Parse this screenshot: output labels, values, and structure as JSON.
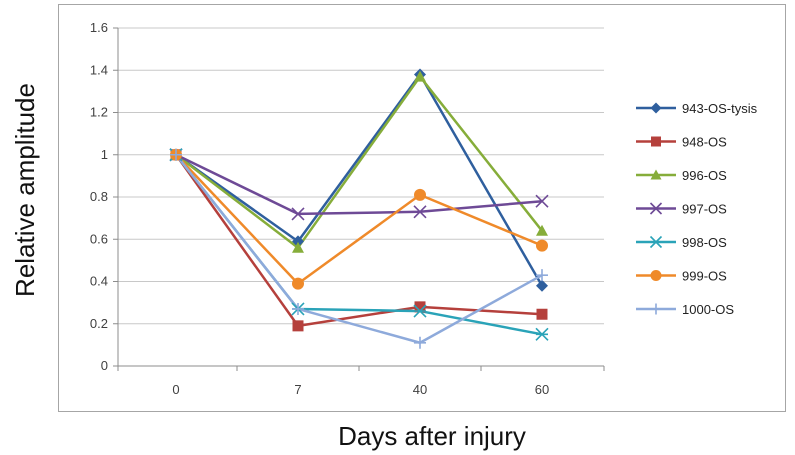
{
  "chart_data": {
    "type": "line",
    "title": "",
    "xlabel": "Days after injury",
    "ylabel": "Relative amplitude",
    "categories": [
      "0",
      "7",
      "40",
      "60"
    ],
    "ylim": [
      0,
      1.6
    ],
    "yticks": [
      "0",
      "0.2",
      "0.4",
      "0.6",
      "0.8",
      "1",
      "1.2",
      "1.4",
      "1.6"
    ],
    "grid": true,
    "legend_position": "right",
    "series": [
      {
        "name": "943-OS-tysis",
        "color": "#2f5f9e",
        "marker": "diamond",
        "values": [
          1.0,
          0.59,
          1.38,
          0.38
        ]
      },
      {
        "name": "948-OS",
        "color": "#b5403c",
        "marker": "square",
        "values": [
          1.0,
          0.19,
          0.28,
          0.245
        ]
      },
      {
        "name": "996-OS",
        "color": "#86ad3a",
        "marker": "triangle",
        "values": [
          1.0,
          0.56,
          1.37,
          0.64
        ]
      },
      {
        "name": "997-OS",
        "color": "#6e4a96",
        "marker": "x",
        "values": [
          1.0,
          0.72,
          0.73,
          0.78
        ]
      },
      {
        "name": "998-OS",
        "color": "#2aa3b8",
        "marker": "star",
        "values": [
          1.0,
          0.27,
          0.26,
          0.15
        ]
      },
      {
        "name": "999-OS",
        "color": "#ef8a2a",
        "marker": "circle",
        "values": [
          1.0,
          0.39,
          0.81,
          0.57
        ]
      },
      {
        "name": "1000-OS",
        "color": "#8eaadb",
        "marker": "plus",
        "values": [
          1.0,
          0.27,
          0.11,
          0.43
        ]
      }
    ]
  }
}
